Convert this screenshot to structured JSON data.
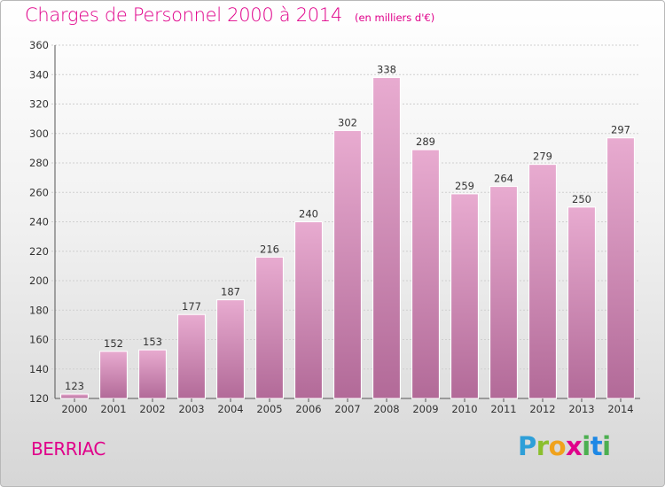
{
  "title": "Charges de Personnel 2000 à 2014",
  "subtitle": "(en milliers d'€)",
  "commune": "BERRIAC",
  "brand": "Proxiti",
  "colors": {
    "title": "#e0008a",
    "bar_light": "#e8abd0",
    "bar_dark": "#b26a98"
  },
  "chart_data": {
    "type": "bar",
    "title": "Charges de Personnel 2000 à 2014",
    "subtitle": "(en milliers d'€)",
    "categories": [
      "2000",
      "2001",
      "2002",
      "2003",
      "2004",
      "2005",
      "2006",
      "2007",
      "2008",
      "2009",
      "2010",
      "2011",
      "2012",
      "2013",
      "2014"
    ],
    "values": [
      123,
      152,
      153,
      177,
      187,
      216,
      240,
      302,
      338,
      289,
      259,
      264,
      279,
      250,
      297
    ],
    "ylim": [
      120,
      360
    ],
    "yticks": [
      120,
      140,
      160,
      180,
      200,
      220,
      240,
      260,
      280,
      300,
      320,
      340,
      360
    ],
    "grid": true,
    "legend": "none"
  }
}
